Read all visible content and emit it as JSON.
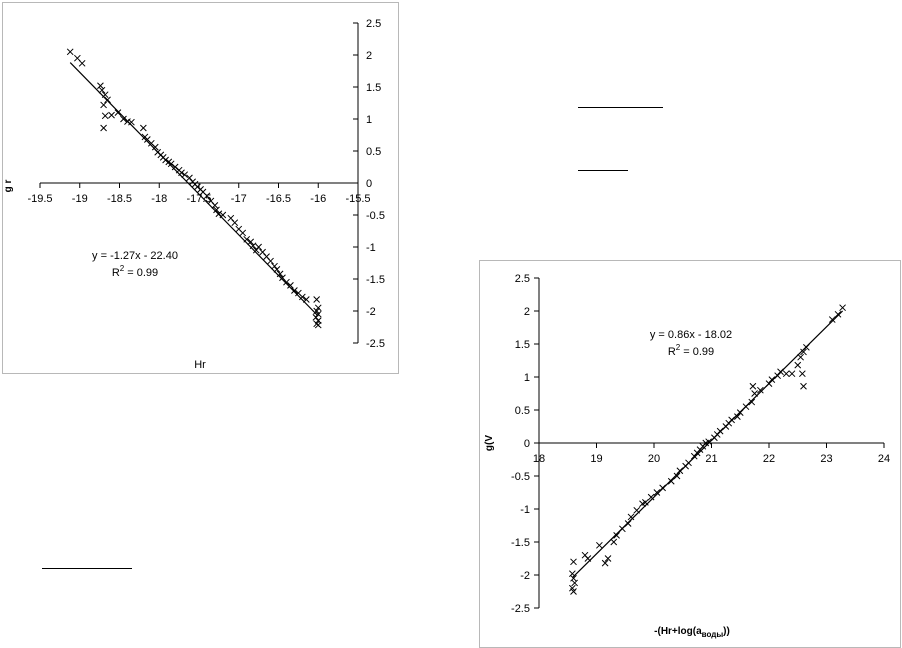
{
  "decorations": {
    "underline_count": 3
  },
  "chart_data": [
    {
      "type": "scatter",
      "title": "",
      "xlabel": "Hr",
      "ylabel": "g r",
      "xlim": [
        -19.5,
        -15.5
      ],
      "ylim": [
        -2.5,
        2.5
      ],
      "xticks": [
        -19.5,
        -19,
        -18.5,
        -18,
        -17.5,
        -17,
        -16.5,
        -16,
        -15.5
      ],
      "yticks": [
        -2.5,
        -2,
        -1.5,
        -1,
        -0.5,
        0,
        0.5,
        1,
        1.5,
        2,
        2.5
      ],
      "xtick_labels": [
        "-19.5",
        "-19",
        "-18.5",
        "-18",
        "-17.5",
        "-17",
        "-16.5",
        "-16",
        "-15.5"
      ],
      "ytick_labels": [
        "-2.5",
        "-2",
        "-1.5",
        "-1",
        "-0.5",
        "0",
        "0.5",
        "1",
        "1.5",
        "2",
        "2.5"
      ],
      "y_axis_side": "right",
      "grid": false,
      "marker": "x",
      "points": [
        [
          -19.12,
          2.05
        ],
        [
          -19.03,
          1.95
        ],
        [
          -18.97,
          1.87
        ],
        [
          -18.74,
          1.52
        ],
        [
          -18.72,
          1.45
        ],
        [
          -18.68,
          1.38
        ],
        [
          -18.65,
          1.3
        ],
        [
          -18.7,
          1.22
        ],
        [
          -18.68,
          1.05
        ],
        [
          -18.7,
          0.86
        ],
        [
          -18.6,
          1.06
        ],
        [
          -18.52,
          1.1
        ],
        [
          -18.45,
          1.0
        ],
        [
          -18.4,
          0.96
        ],
        [
          -18.35,
          0.95
        ],
        [
          -18.2,
          0.86
        ],
        [
          -18.18,
          0.72
        ],
        [
          -18.15,
          0.68
        ],
        [
          -18.1,
          0.62
        ],
        [
          -18.05,
          0.56
        ],
        [
          -18.02,
          0.48
        ],
        [
          -17.98,
          0.44
        ],
        [
          -17.95,
          0.4
        ],
        [
          -17.92,
          0.36
        ],
        [
          -17.88,
          0.33
        ],
        [
          -17.85,
          0.3
        ],
        [
          -17.8,
          0.25
        ],
        [
          -17.75,
          0.2
        ],
        [
          -17.72,
          0.16
        ],
        [
          -17.68,
          0.13
        ],
        [
          -17.62,
          0.08
        ],
        [
          -17.58,
          0.02
        ],
        [
          -17.55,
          -0.02
        ],
        [
          -17.52,
          -0.06
        ],
        [
          -17.48,
          -0.1
        ],
        [
          -17.45,
          -0.14
        ],
        [
          -17.4,
          -0.2
        ],
        [
          -17.35,
          -0.28
        ],
        [
          -17.3,
          -0.35
        ],
        [
          -17.28,
          -0.42
        ],
        [
          -17.25,
          -0.48
        ],
        [
          -17.2,
          -0.5
        ],
        [
          -17.1,
          -0.55
        ],
        [
          -17.05,
          -0.62
        ],
        [
          -17.0,
          -0.72
        ],
        [
          -16.95,
          -0.78
        ],
        [
          -16.9,
          -0.88
        ],
        [
          -16.85,
          -0.92
        ],
        [
          -16.82,
          -0.98
        ],
        [
          -16.78,
          -1.05
        ],
        [
          -16.75,
          -1.0
        ],
        [
          -16.7,
          -1.08
        ],
        [
          -16.65,
          -1.15
        ],
        [
          -16.6,
          -1.22
        ],
        [
          -16.55,
          -1.3
        ],
        [
          -16.52,
          -1.35
        ],
        [
          -16.48,
          -1.42
        ],
        [
          -16.45,
          -1.48
        ],
        [
          -16.4,
          -1.55
        ],
        [
          -16.35,
          -1.6
        ],
        [
          -16.3,
          -1.68
        ],
        [
          -16.25,
          -1.72
        ],
        [
          -16.2,
          -1.78
        ],
        [
          -16.15,
          -1.82
        ],
        [
          -16.02,
          -1.82
        ],
        [
          -16.0,
          -1.95
        ],
        [
          -16.02,
          -2.0
        ],
        [
          -16.0,
          -2.05
        ],
        [
          -16.03,
          -2.1
        ],
        [
          -16.0,
          -2.15
        ],
        [
          -16.02,
          -2.2
        ],
        [
          -16.0,
          -2.22
        ]
      ],
      "trendline": {
        "slope": -1.27,
        "intercept": -22.4
      },
      "annotation": {
        "equation": "y = -1.27x - 22.40",
        "r2_prefix": "R",
        "r2_suffix": " = 0.99"
      }
    },
    {
      "type": "scatter",
      "title": "",
      "xlabel_prefix": "-(Hr+log(a",
      "xlabel_sub": "воды",
      "xlabel_suffix": "))",
      "ylabel": "g(V",
      "xlim": [
        18,
        24
      ],
      "ylim": [
        -2.5,
        2.5
      ],
      "xticks": [
        18,
        19,
        20,
        21,
        22,
        23,
        24
      ],
      "yticks": [
        -2.5,
        -2,
        -1.5,
        -1,
        -0.5,
        0,
        0.5,
        1,
        1.5,
        2,
        2.5
      ],
      "xtick_labels": [
        "18",
        "19",
        "20",
        "21",
        "22",
        "23",
        "24"
      ],
      "ytick_labels": [
        "-2.5",
        "-2",
        "-1.5",
        "-1",
        "-0.5",
        "0",
        "0.5",
        "1",
        "1.5",
        "2",
        "2.5"
      ],
      "y_axis_side": "left",
      "grid": false,
      "marker": "x",
      "points": [
        [
          18.6,
          -1.8
        ],
        [
          18.58,
          -1.98
        ],
        [
          18.6,
          -2.05
        ],
        [
          18.62,
          -2.12
        ],
        [
          18.58,
          -2.2
        ],
        [
          18.6,
          -2.25
        ],
        [
          18.8,
          -1.7
        ],
        [
          18.85,
          -1.75
        ],
        [
          19.05,
          -1.55
        ],
        [
          19.2,
          -1.75
        ],
        [
          19.15,
          -1.82
        ],
        [
          19.3,
          -1.5
        ],
        [
          19.35,
          -1.4
        ],
        [
          19.45,
          -1.3
        ],
        [
          19.55,
          -1.22
        ],
        [
          19.6,
          -1.12
        ],
        [
          19.7,
          -1.02
        ],
        [
          19.8,
          -0.92
        ],
        [
          19.85,
          -0.9
        ],
        [
          19.95,
          -0.82
        ],
        [
          20.05,
          -0.75
        ],
        [
          20.15,
          -0.68
        ],
        [
          20.3,
          -0.58
        ],
        [
          20.4,
          -0.5
        ],
        [
          20.45,
          -0.42
        ],
        [
          20.55,
          -0.35
        ],
        [
          20.6,
          -0.3
        ],
        [
          20.7,
          -0.2
        ],
        [
          20.75,
          -0.15
        ],
        [
          20.8,
          -0.1
        ],
        [
          20.85,
          -0.05
        ],
        [
          20.9,
          0.0
        ],
        [
          20.95,
          0.02
        ],
        [
          21.05,
          0.08
        ],
        [
          21.1,
          0.13
        ],
        [
          21.15,
          0.18
        ],
        [
          21.25,
          0.25
        ],
        [
          21.3,
          0.3
        ],
        [
          21.35,
          0.35
        ],
        [
          21.45,
          0.4
        ],
        [
          21.5,
          0.46
        ],
        [
          21.6,
          0.55
        ],
        [
          21.7,
          0.62
        ],
        [
          21.75,
          0.75
        ],
        [
          21.72,
          0.86
        ],
        [
          21.85,
          0.8
        ],
        [
          22.0,
          0.9
        ],
        [
          22.05,
          0.96
        ],
        [
          22.15,
          1.02
        ],
        [
          22.2,
          1.08
        ],
        [
          22.3,
          1.05
        ],
        [
          22.4,
          1.05
        ],
        [
          22.5,
          1.18
        ],
        [
          22.55,
          1.3
        ],
        [
          22.6,
          1.38
        ],
        [
          22.65,
          1.45
        ],
        [
          22.58,
          1.05
        ],
        [
          22.6,
          0.86
        ],
        [
          23.1,
          1.87
        ],
        [
          23.2,
          1.95
        ],
        [
          23.28,
          2.05
        ]
      ],
      "trendline": {
        "slope": 0.86,
        "intercept": -18.02
      },
      "annotation": {
        "equation": "y = 0.86x - 18.02",
        "r2_prefix": "R",
        "r2_suffix": " = 0.99"
      }
    }
  ]
}
